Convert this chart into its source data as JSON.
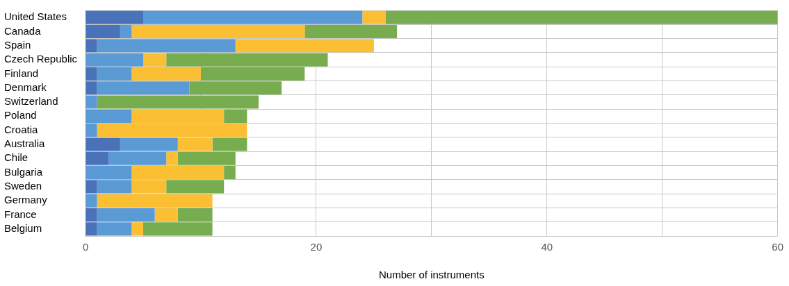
{
  "chart_data": {
    "type": "bar",
    "orientation": "horizontal",
    "stacked": true,
    "xlabel": "Number of instruments",
    "categories": [
      "United States",
      "Canada",
      "Spain",
      "Czech Republic",
      "Finland",
      "Denmark",
      "Switzerland",
      "Poland",
      "Croatia",
      "Australia",
      "Chile",
      "Bulgaria",
      "Sweden",
      "Germany",
      "France",
      "Belgium"
    ],
    "series": [
      {
        "color": "#4a72b8",
        "values": [
          5,
          3,
          1,
          0,
          1,
          1,
          0,
          0,
          0,
          3,
          2,
          0,
          1,
          0,
          1,
          1
        ]
      },
      {
        "color": "#5b9bd5",
        "values": [
          19,
          1,
          12,
          5,
          3,
          8,
          1,
          4,
          1,
          5,
          5,
          4,
          3,
          1,
          5,
          3
        ]
      },
      {
        "color": "#fbbf33",
        "values": [
          2,
          15,
          12,
          2,
          6,
          0,
          0,
          8,
          13,
          3,
          1,
          8,
          3,
          10,
          2,
          1
        ]
      },
      {
        "color": "#77ac4f",
        "values": [
          34,
          8,
          0,
          14,
          9,
          8,
          14,
          2,
          0,
          3,
          5,
          1,
          5,
          0,
          3,
          6
        ]
      }
    ],
    "xlim": [
      0,
      60
    ],
    "xticks": [
      0,
      {
        "value": 10,
        "label": null
      },
      20,
      {
        "value": 30,
        "label": null
      },
      40,
      {
        "value": 50,
        "label": null
      },
      60
    ],
    "grid": true,
    "legend": false
  }
}
